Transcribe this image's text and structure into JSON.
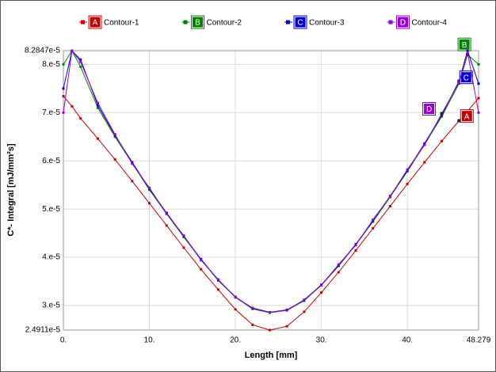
{
  "chart_data": {
    "type": "line",
    "x_label": "Length [mm]",
    "y_label": "C*- Integral [mJ/mm²s]",
    "x": [
      0,
      1,
      2,
      4,
      6,
      8,
      10,
      12,
      14,
      16,
      18,
      20,
      22,
      24,
      26,
      28,
      30,
      32,
      34,
      36,
      38,
      40,
      42,
      44,
      46,
      47,
      48.279
    ],
    "xlim": [
      0,
      48.279
    ],
    "ylim": [
      2.4911e-05,
      8.2847e-05
    ],
    "xticks": [
      {
        "value": 0,
        "label": "0."
      },
      {
        "value": 10,
        "label": "10."
      },
      {
        "value": 20,
        "label": "20."
      },
      {
        "value": 30,
        "label": "30."
      },
      {
        "value": 40,
        "label": "40."
      },
      48.279
    ],
    "yticks": [
      {
        "value": 2.4911e-05,
        "label": "2.4911e-5"
      },
      {
        "value": 3e-05,
        "label": "3.e-5"
      },
      {
        "value": 4e-05,
        "label": "4.e-5"
      },
      {
        "value": 5e-05,
        "label": "5.e-5"
      },
      {
        "value": 6e-05,
        "label": "6.e-5"
      },
      {
        "value": 7e-05,
        "label": "7.e-5"
      },
      {
        "value": 8e-05,
        "label": "8.e-5"
      },
      {
        "value": 8.2847e-05,
        "label": "8.2847e-5"
      }
    ],
    "grid": true,
    "series": [
      {
        "name": "Contour-1",
        "label": "A",
        "color": "#c00000",
        "values": [
          7.34e-05,
          7.13e-05,
          6.88e-05,
          6.46e-05,
          6.03e-05,
          5.58e-05,
          5.12e-05,
          4.66e-05,
          4.2e-05,
          3.75e-05,
          3.33e-05,
          2.92e-05,
          2.6e-05,
          2.4911e-05,
          2.57e-05,
          2.87e-05,
          3.27e-05,
          3.69e-05,
          4.14e-05,
          4.6e-05,
          5.06e-05,
          5.52e-05,
          5.97e-05,
          6.41e-05,
          6.83e-05,
          7.03e-05,
          7.3e-05
        ]
      },
      {
        "name": "Contour-2",
        "label": "B",
        "color": "#008000",
        "values": [
          8e-05,
          8.28e-05,
          7.95e-05,
          7.1e-05,
          6.5e-05,
          5.95e-05,
          5.4e-05,
          4.9e-05,
          4.42e-05,
          3.95e-05,
          3.52e-05,
          3.17e-05,
          2.93e-05,
          2.85e-05,
          2.9e-05,
          3.1e-05,
          3.42e-05,
          3.82e-05,
          4.26e-05,
          4.74e-05,
          5.25e-05,
          5.78e-05,
          6.34e-05,
          6.92e-05,
          7.6e-05,
          8.2e-05,
          8e-05
        ]
      },
      {
        "name": "Contour-3",
        "label": "C",
        "color": "#0000cc",
        "values": [
          7.5e-05,
          8.28e-05,
          8.1e-05,
          7.15e-05,
          6.53e-05,
          5.97e-05,
          5.42e-05,
          4.92e-05,
          4.44e-05,
          3.96e-05,
          3.53e-05,
          3.18e-05,
          2.94e-05,
          2.86e-05,
          2.91e-05,
          3.11e-05,
          3.43e-05,
          3.83e-05,
          4.27e-05,
          4.76e-05,
          5.27e-05,
          5.8e-05,
          6.36e-05,
          6.95e-05,
          7.65e-05,
          8.28e-05,
          7.6e-05
        ]
      },
      {
        "name": "Contour-4",
        "label": "D",
        "color": "#9900cc",
        "values": [
          7e-05,
          8.2847e-05,
          8.05e-05,
          7.2e-05,
          6.55e-05,
          5.94e-05,
          5.44e-05,
          4.9e-05,
          4.45e-05,
          3.94e-05,
          3.54e-05,
          3.17e-05,
          2.95e-05,
          2.86e-05,
          2.9e-05,
          3.12e-05,
          3.42e-05,
          3.85e-05,
          4.25e-05,
          4.78e-05,
          5.26e-05,
          5.82e-05,
          6.33e-05,
          6.98e-05,
          7.62e-05,
          8.25e-05,
          7e-05
        ]
      }
    ]
  }
}
